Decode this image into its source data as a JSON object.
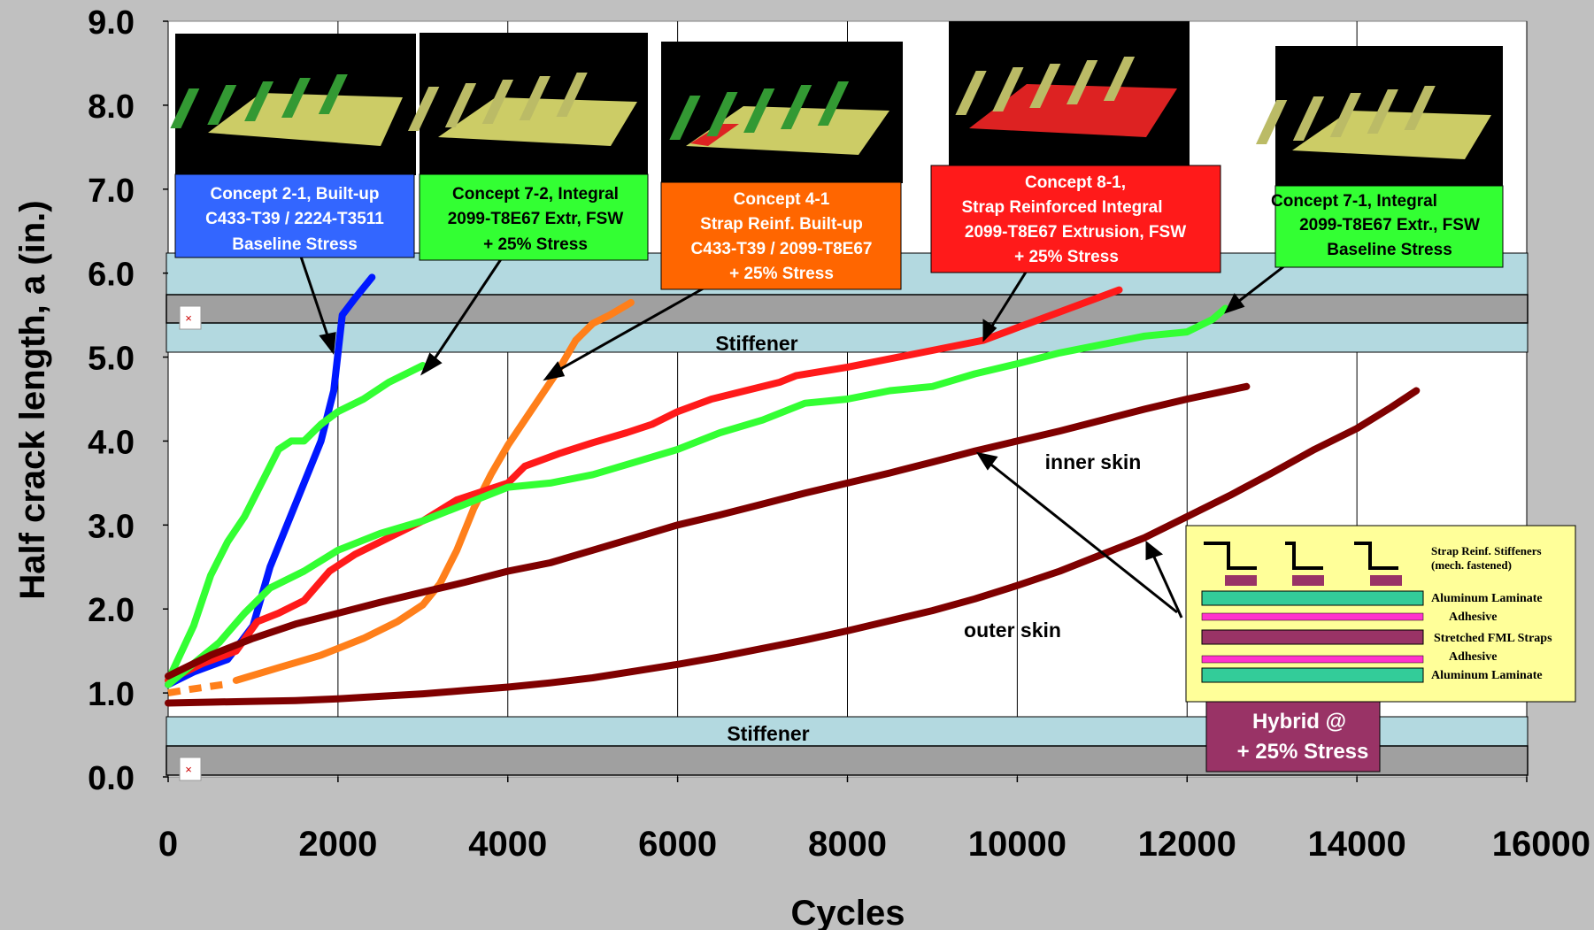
{
  "chart_data": {
    "type": "line",
    "xlabel": "Cycles",
    "ylabel": "Half crack length, a (in.)",
    "xlim": [
      0,
      16000
    ],
    "ylim": [
      0,
      9
    ],
    "x_ticks": [
      "0",
      "2000",
      "4000",
      "6000",
      "8000",
      "10000",
      "12000",
      "14000",
      "16000"
    ],
    "y_ticks": [
      "0.0",
      "1.0",
      "2.0",
      "3.0",
      "4.0",
      "5.0",
      "6.0",
      "7.0",
      "8.0",
      "9.0"
    ],
    "grid": "vertical",
    "stiffener_label": "Stiffener",
    "series": [
      {
        "color": "#0018ff",
        "points": [
          [
            0,
            1.1
          ],
          [
            300,
            1.25
          ],
          [
            700,
            1.4
          ],
          [
            1000,
            1.8
          ],
          [
            1200,
            2.5
          ],
          [
            1400,
            3.0
          ],
          [
            1600,
            3.5
          ],
          [
            1800,
            4.0
          ],
          [
            1950,
            4.6
          ],
          [
            2050,
            5.5
          ],
          [
            2200,
            5.7
          ],
          [
            2400,
            5.95
          ]
        ]
      },
      {
        "color": "#33ff33",
        "points": [
          [
            0,
            1.15
          ],
          [
            300,
            1.8
          ],
          [
            500,
            2.4
          ],
          [
            700,
            2.8
          ],
          [
            900,
            3.1
          ],
          [
            1100,
            3.5
          ],
          [
            1300,
            3.9
          ],
          [
            1450,
            4.0
          ],
          [
            1600,
            4.0
          ],
          [
            1800,
            4.2
          ],
          [
            2000,
            4.35
          ],
          [
            2300,
            4.5
          ],
          [
            2600,
            4.7
          ],
          [
            3000,
            4.9
          ]
        ]
      },
      {
        "color": "#ff7f1a",
        "dashed_segment": [
          [
            0,
            1.0
          ],
          [
            300,
            1.05
          ],
          [
            650,
            1.1
          ]
        ]
      },
      {
        "color": "#ff7f1a",
        "points": [
          [
            800,
            1.15
          ],
          [
            1300,
            1.3
          ],
          [
            1800,
            1.45
          ],
          [
            2300,
            1.65
          ],
          [
            2700,
            1.85
          ],
          [
            3000,
            2.05
          ],
          [
            3200,
            2.3
          ],
          [
            3400,
            2.7
          ],
          [
            3600,
            3.2
          ],
          [
            3800,
            3.6
          ],
          [
            4000,
            3.95
          ],
          [
            4300,
            4.4
          ],
          [
            4600,
            4.85
          ],
          [
            4800,
            5.2
          ],
          [
            5000,
            5.4
          ],
          [
            5200,
            5.5
          ],
          [
            5450,
            5.65
          ]
        ]
      },
      {
        "color": "#ff1a1a",
        "points": [
          [
            0,
            1.15
          ],
          [
            400,
            1.35
          ],
          [
            800,
            1.5
          ],
          [
            1050,
            1.85
          ],
          [
            1300,
            1.95
          ],
          [
            1600,
            2.1
          ],
          [
            1900,
            2.45
          ],
          [
            2200,
            2.65
          ],
          [
            2600,
            2.85
          ],
          [
            3000,
            3.05
          ],
          [
            3400,
            3.3
          ],
          [
            4000,
            3.5
          ],
          [
            4200,
            3.7
          ],
          [
            4600,
            3.85
          ],
          [
            5000,
            3.98
          ],
          [
            5400,
            4.1
          ],
          [
            5700,
            4.2
          ],
          [
            6000,
            4.35
          ],
          [
            6400,
            4.5
          ],
          [
            6800,
            4.6
          ],
          [
            7200,
            4.7
          ],
          [
            7400,
            4.78
          ],
          [
            8000,
            4.88
          ],
          [
            8600,
            5.0
          ],
          [
            9000,
            5.08
          ],
          [
            9600,
            5.2
          ],
          [
            10000,
            5.35
          ],
          [
            10400,
            5.5
          ],
          [
            10800,
            5.65
          ],
          [
            11200,
            5.8
          ]
        ]
      },
      {
        "color": "#33ff33",
        "points": [
          [
            0,
            1.1
          ],
          [
            300,
            1.35
          ],
          [
            600,
            1.6
          ],
          [
            900,
            1.95
          ],
          [
            1200,
            2.25
          ],
          [
            1600,
            2.45
          ],
          [
            2000,
            2.7
          ],
          [
            2500,
            2.9
          ],
          [
            3000,
            3.05
          ],
          [
            3500,
            3.25
          ],
          [
            4000,
            3.45
          ],
          [
            4500,
            3.5
          ],
          [
            5000,
            3.6
          ],
          [
            5500,
            3.75
          ],
          [
            6000,
            3.9
          ],
          [
            6500,
            4.1
          ],
          [
            7000,
            4.25
          ],
          [
            7500,
            4.45
          ],
          [
            8000,
            4.5
          ],
          [
            8500,
            4.6
          ],
          [
            9000,
            4.65
          ],
          [
            9500,
            4.8
          ],
          [
            10000,
            4.92
          ],
          [
            10500,
            5.05
          ],
          [
            11000,
            5.15
          ],
          [
            11500,
            5.25
          ],
          [
            12000,
            5.3
          ],
          [
            12300,
            5.45
          ],
          [
            12450,
            5.58
          ]
        ]
      },
      {
        "color": "#7f0000",
        "points": [
          [
            0,
            1.2
          ],
          [
            500,
            1.45
          ],
          [
            1000,
            1.65
          ],
          [
            1500,
            1.82
          ],
          [
            2000,
            1.95
          ],
          [
            2500,
            2.08
          ],
          [
            3000,
            2.2
          ],
          [
            3500,
            2.32
          ],
          [
            4000,
            2.45
          ],
          [
            4500,
            2.55
          ],
          [
            5000,
            2.7
          ],
          [
            5500,
            2.85
          ],
          [
            6000,
            3.0
          ],
          [
            6500,
            3.12
          ],
          [
            7000,
            3.25
          ],
          [
            7500,
            3.38
          ],
          [
            8000,
            3.5
          ],
          [
            8500,
            3.62
          ],
          [
            9000,
            3.75
          ],
          [
            9500,
            3.88
          ],
          [
            10000,
            4.0
          ],
          [
            10500,
            4.12
          ],
          [
            11000,
            4.25
          ],
          [
            11500,
            4.38
          ],
          [
            12000,
            4.5
          ],
          [
            12700,
            4.65
          ]
        ]
      },
      {
        "color": "#7f0000",
        "points": [
          [
            0,
            0.88
          ],
          [
            500,
            0.89
          ],
          [
            1000,
            0.9
          ],
          [
            1500,
            0.91
          ],
          [
            2000,
            0.93
          ],
          [
            2500,
            0.96
          ],
          [
            3000,
            0.99
          ],
          [
            3500,
            1.03
          ],
          [
            4000,
            1.07
          ],
          [
            4500,
            1.12
          ],
          [
            5000,
            1.18
          ],
          [
            5500,
            1.26
          ],
          [
            6000,
            1.34
          ],
          [
            6500,
            1.43
          ],
          [
            7000,
            1.53
          ],
          [
            7500,
            1.63
          ],
          [
            8000,
            1.74
          ],
          [
            8500,
            1.86
          ],
          [
            9000,
            1.98
          ],
          [
            9500,
            2.12
          ],
          [
            10000,
            2.28
          ],
          [
            10500,
            2.45
          ],
          [
            11000,
            2.65
          ],
          [
            11500,
            2.85
          ],
          [
            12000,
            3.1
          ],
          [
            12500,
            3.35
          ],
          [
            13000,
            3.62
          ],
          [
            13500,
            3.9
          ],
          [
            14000,
            4.15
          ],
          [
            14400,
            4.4
          ],
          [
            14700,
            4.6
          ]
        ]
      }
    ],
    "annotations": {
      "c21": [
        "Concept 2-1, Built-up",
        "C433-T39 / 2224-T3511",
        "Baseline Stress"
      ],
      "c72": [
        "Concept 7-2, Integral",
        "2099-T8E67 Extr, FSW",
        "+ 25% Stress"
      ],
      "c41": [
        "Concept 4-1",
        "Strap Reinf. Built-up",
        "C433-T39 / 2099-T8E67",
        "+ 25% Stress"
      ],
      "c81": [
        "Concept 8-1,",
        "Strap Reinforced  Integral",
        "2099-T8E67 Extrusion, FSW",
        "+ 25% Stress"
      ],
      "c71": [
        "Concept 7-1, Integral",
        "2099-T8E67 Extr., FSW",
        "Baseline Stress"
      ],
      "inner": "inner skin",
      "outer": "outer skin",
      "hybrid": [
        "Hybrid @",
        "+ 25% Stress"
      ],
      "legend": [
        "Strap Reinf. Stiffeners",
        "(mech. fastened)",
        "Aluminum Laminate",
        "Adhesive",
        "Stretched FML Straps",
        "Adhesive",
        "Aluminum Laminate"
      ]
    },
    "colors": {
      "blue_box": "#3366ff",
      "green_box": "#33ff33",
      "orange_box": "#ff6600",
      "red_box": "#ff1a1a",
      "hybrid_box": "#993366",
      "legend_bg": "#ffff99",
      "stiffener_band": "#b3d9e0"
    }
  }
}
